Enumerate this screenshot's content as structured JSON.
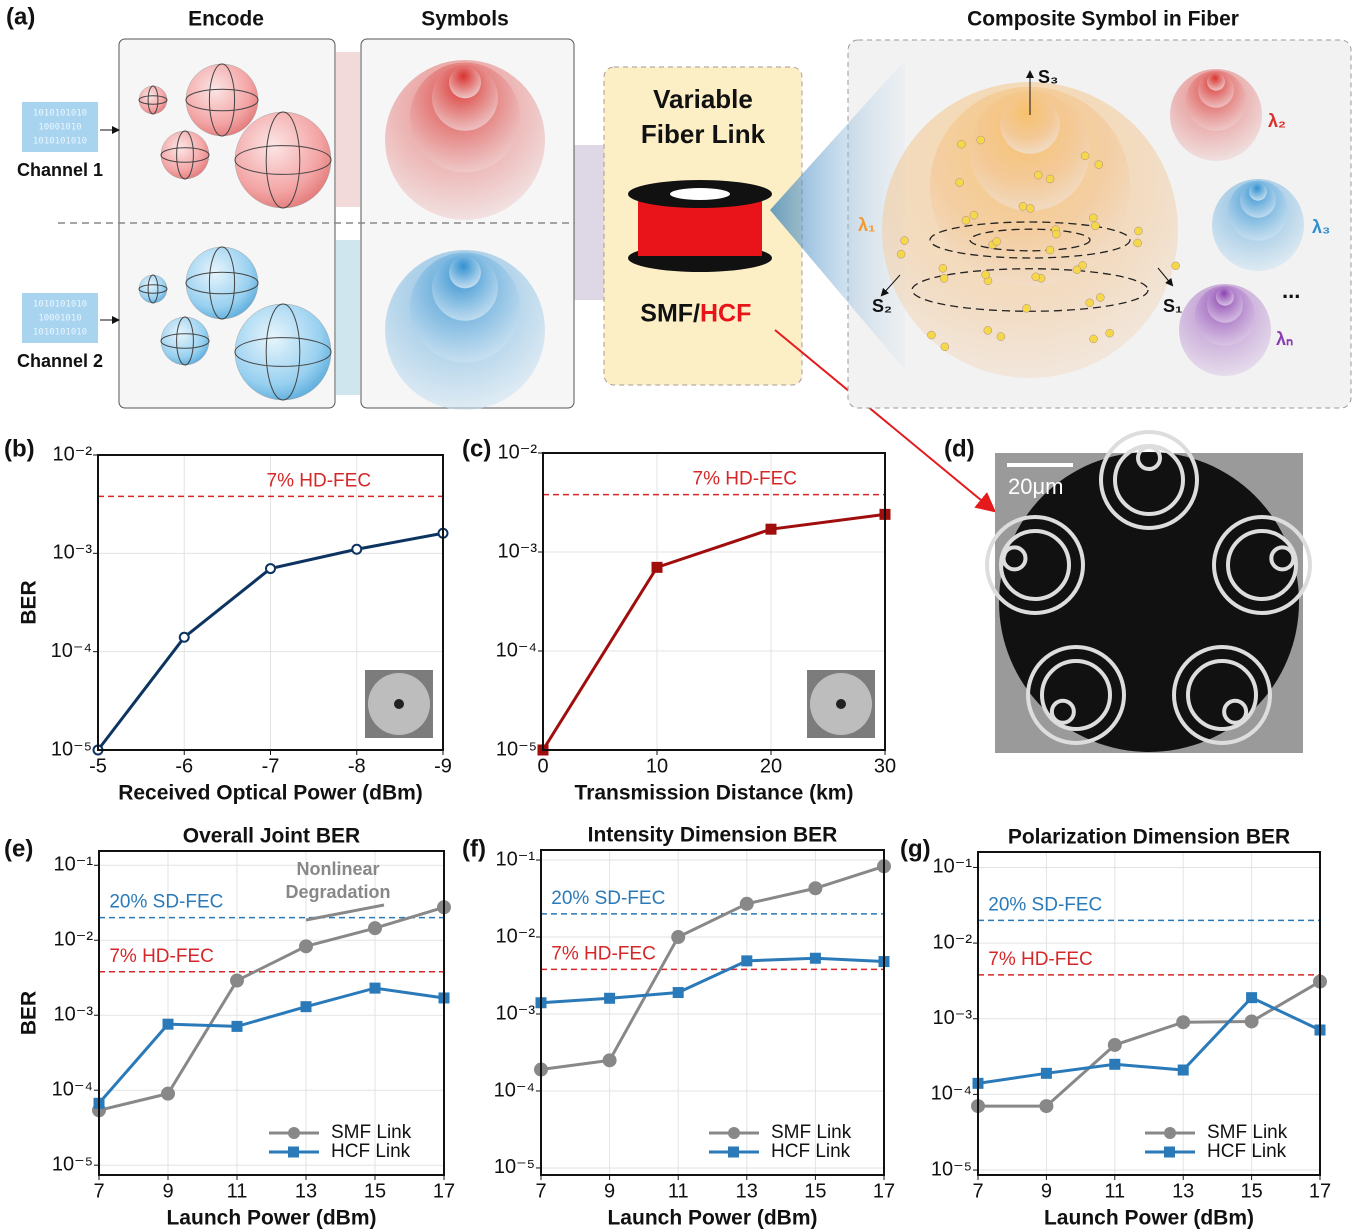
{
  "figure_a": {
    "panel": "(a)",
    "encode_title": "Encode",
    "symbols_title": "Symbols",
    "composite_title": "Composite Symbol in Fiber",
    "channels": [
      "Channel 1",
      "Channel 2"
    ],
    "bits": [
      "1010101010",
      "10001010",
      "1010101010"
    ],
    "link_title": [
      "Variable",
      "Fiber Link"
    ],
    "fiber_smf": "SMF/",
    "fiber_hcf": "HCF",
    "stokes": [
      "S₃",
      "S₂",
      "S₁"
    ],
    "wavelengths": [
      "λ₁",
      "λ₂",
      "λ₃",
      "λₙ"
    ],
    "more": "..."
  },
  "figure_d": {
    "panel": "(d)",
    "scale_label": "20μm"
  },
  "chart_data": [
    {
      "type": "line",
      "panel": "(b)",
      "xlabel": "Received Optical Power (dBm)",
      "ylabel": "BER",
      "x": [
        -5,
        -6,
        -7,
        -8,
        -9
      ],
      "values": [
        1e-05,
        0.00014,
        0.0007,
        0.0011,
        0.0016
      ],
      "color": "#0d3461",
      "marker": "circle-open",
      "xlim": [
        -5,
        -9
      ],
      "xticks": [
        -5,
        -6,
        -7,
        -8,
        -9
      ],
      "ylim": [
        1e-05,
        0.01
      ],
      "yticks": [
        {
          "value": 1e-05,
          "label": "10⁻⁵"
        },
        {
          "value": 0.0001,
          "label": "10⁻⁴"
        },
        {
          "value": 0.001,
          "label": "10⁻³"
        },
        {
          "value": 0.01,
          "label": "10⁻²"
        }
      ],
      "log_y": true,
      "grid": true,
      "thresholds": [
        {
          "label": "7% HD-FEC",
          "value": 0.0038,
          "color": "#d62728"
        }
      ]
    },
    {
      "type": "line",
      "panel": "(c)",
      "xlabel": "Transmission Distance (km)",
      "x": [
        0,
        10,
        20,
        30
      ],
      "values": [
        1e-05,
        0.0007,
        0.0017,
        0.0024
      ],
      "color": "#a00d0d",
      "marker": "square",
      "xlim": [
        0,
        30
      ],
      "xticks": [
        0,
        10,
        20,
        30
      ],
      "ylim": [
        1e-05,
        0.01
      ],
      "yticks": [
        {
          "value": 1e-05,
          "label": "10⁻⁵"
        },
        {
          "value": 0.0001,
          "label": "10⁻⁴"
        },
        {
          "value": 0.001,
          "label": "10⁻³"
        },
        {
          "value": 0.01,
          "label": "10⁻²"
        }
      ],
      "log_y": true,
      "grid": true,
      "thresholds": [
        {
          "label": "7% HD-FEC",
          "value": 0.0038,
          "color": "#d62728"
        }
      ]
    },
    {
      "type": "line",
      "panel": "(e)",
      "title": "Overall Joint BER",
      "xlabel": "Launch Power (dBm)",
      "ylabel": "BER",
      "x": [
        7,
        9,
        11,
        13,
        15,
        17
      ],
      "series": [
        {
          "name": "SMF Link",
          "color": "#888888",
          "marker": "circle",
          "values": [
            5.4e-05,
            9e-05,
            0.0029,
            0.0083,
            0.0145,
            0.0275
          ]
        },
        {
          "name": "HCF Link",
          "color": "#2a7ab9",
          "marker": "square",
          "values": [
            6.7e-05,
            0.00076,
            0.00071,
            0.0013,
            0.0023,
            0.0017
          ]
        }
      ],
      "xlim": [
        7,
        17
      ],
      "xticks": [
        7,
        9,
        11,
        13,
        15,
        17
      ],
      "ylim": [
        7.4e-06,
        0.155
      ],
      "yticks": [
        {
          "value": 1e-05,
          "label": "10⁻⁵"
        },
        {
          "value": 0.0001,
          "label": "10⁻⁴"
        },
        {
          "value": 0.001,
          "label": "10⁻³"
        },
        {
          "value": 0.01,
          "label": "10⁻²"
        },
        {
          "value": 0.1,
          "label": "10⁻¹"
        }
      ],
      "log_y": true,
      "grid": true,
      "legend": "lower right",
      "thresholds": [
        {
          "label": "20% SD-FEC",
          "value": 0.02,
          "color": "#2a7ab9"
        },
        {
          "label": "7% HD-FEC",
          "value": 0.0038,
          "color": "#d62728"
        }
      ],
      "annotation": [
        "Nonlinear",
        "Degradation"
      ]
    },
    {
      "type": "line",
      "panel": "(f)",
      "title": "Intensity Dimension BER",
      "xlabel": "Launch Power (dBm)",
      "x": [
        7,
        9,
        11,
        13,
        15,
        17
      ],
      "series": [
        {
          "name": "SMF Link",
          "color": "#888888",
          "marker": "circle",
          "values": [
            0.00019,
            0.00025,
            0.01,
            0.027,
            0.043,
            0.083
          ]
        },
        {
          "name": "HCF Link",
          "color": "#2a7ab9",
          "marker": "square",
          "values": [
            0.0014,
            0.0016,
            0.0019,
            0.0049,
            0.0053,
            0.0048
          ]
        }
      ],
      "xlim": [
        7,
        17
      ],
      "xticks": [
        7,
        9,
        11,
        13,
        15,
        17
      ],
      "ylim": [
        8.1e-06,
        0.135
      ],
      "yticks": [
        {
          "value": 1e-05,
          "label": "10⁻⁵"
        },
        {
          "value": 0.0001,
          "label": "10⁻⁴"
        },
        {
          "value": 0.001,
          "label": "10⁻³"
        },
        {
          "value": 0.01,
          "label": "10⁻²"
        },
        {
          "value": 0.1,
          "label": "10⁻¹"
        }
      ],
      "log_y": true,
      "grid": true,
      "legend": "lower right",
      "thresholds": [
        {
          "label": "20% SD-FEC",
          "value": 0.02,
          "color": "#2a7ab9"
        },
        {
          "label": "7% HD-FEC",
          "value": 0.0038,
          "color": "#d62728"
        }
      ]
    },
    {
      "type": "line",
      "panel": "(g)",
      "title": "Polarization Dimension BER",
      "xlabel": "Launch Power (dBm)",
      "x": [
        7,
        9,
        11,
        13,
        15,
        17
      ],
      "series": [
        {
          "name": "SMF Link",
          "color": "#888888",
          "marker": "circle",
          "values": [
            7e-05,
            7e-05,
            0.00045,
            0.0009,
            0.00092,
            0.0031
          ]
        },
        {
          "name": "HCF Link",
          "color": "#2a7ab9",
          "marker": "square",
          "values": [
            0.00014,
            0.00019,
            0.00025,
            0.00021,
            0.0019,
            0.00071
          ]
        }
      ],
      "xlim": [
        7,
        17
      ],
      "xticks": [
        7,
        9,
        11,
        13,
        15,
        17
      ],
      "ylim": [
        8.6e-06,
        0.16
      ],
      "yticks": [
        {
          "value": 1e-05,
          "label": "10⁻⁵"
        },
        {
          "value": 0.0001,
          "label": "10⁻⁴"
        },
        {
          "value": 0.001,
          "label": "10⁻³"
        },
        {
          "value": 0.01,
          "label": "10⁻²"
        },
        {
          "value": 0.1,
          "label": "10⁻¹"
        }
      ],
      "log_y": true,
      "grid": true,
      "legend": "lower right",
      "thresholds": [
        {
          "label": "20% SD-FEC",
          "value": 0.02,
          "color": "#2a7ab9"
        },
        {
          "label": "7% HD-FEC",
          "value": 0.0038,
          "color": "#d62728"
        }
      ]
    }
  ]
}
